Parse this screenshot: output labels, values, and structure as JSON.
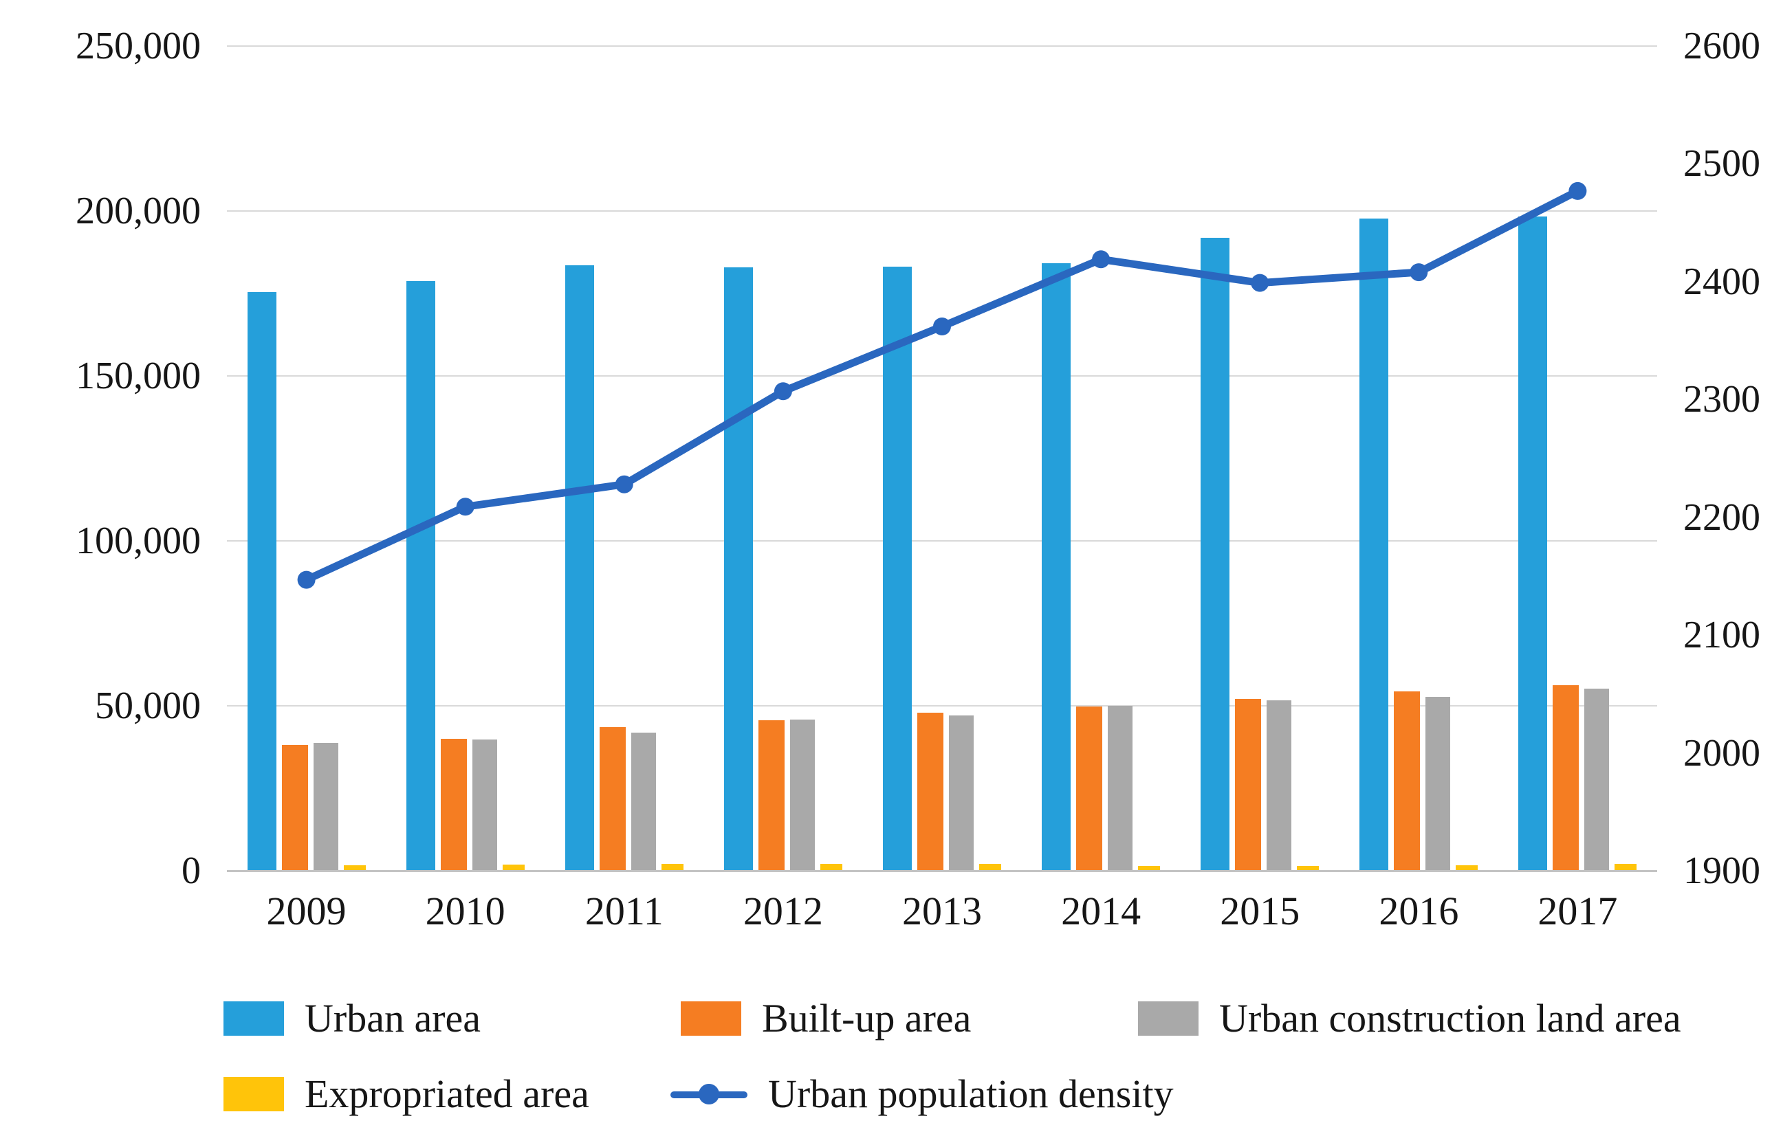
{
  "chart_data": {
    "type": "bar",
    "title": "",
    "categories": [
      "2009",
      "2010",
      "2011",
      "2012",
      "2013",
      "2014",
      "2015",
      "2016",
      "2017"
    ],
    "series": [
      {
        "name": "Urban area",
        "type": "bar",
        "axis": "left",
        "color": "#259fda",
        "values": [
          175500,
          178700,
          183600,
          183000,
          183200,
          184100,
          191800,
          197800,
          198300
        ]
      },
      {
        "name": "Built-up area",
        "type": "bar",
        "axis": "left",
        "color": "#f57d22",
        "values": [
          38100,
          40100,
          43600,
          45600,
          47900,
          49800,
          52100,
          54300,
          56200
        ]
      },
      {
        "name": "Urban construction land area",
        "type": "bar",
        "axis": "left",
        "color": "#a9a9a9",
        "values": [
          38700,
          39800,
          41800,
          45800,
          47100,
          50000,
          51600,
          52800,
          55200
        ]
      },
      {
        "name": "Expropriated area",
        "type": "bar",
        "axis": "left",
        "color": "#ffc40a",
        "values": [
          1700,
          1900,
          2000,
          2100,
          2000,
          1500,
          1500,
          1600,
          2100
        ]
      },
      {
        "name": "Urban population density",
        "type": "line",
        "axis": "right",
        "color": "#2a67bf",
        "values": [
          2147,
          2209,
          2228,
          2307,
          2362,
          2419,
          2399,
          2408,
          2477
        ]
      }
    ],
    "left_axis": {
      "min": 0,
      "max": 250000,
      "step": 50000,
      "tick_labels": [
        "250,000",
        "200,000",
        "150,000",
        "100,000",
        "50,000",
        "0"
      ]
    },
    "right_axis": {
      "min": 1900,
      "max": 2600,
      "step": 100,
      "tick_labels": [
        "2600",
        "2500",
        "2400",
        "2300",
        "2200",
        "2100",
        "2000",
        "1900"
      ]
    },
    "grid": true,
    "legend_position": "bottom"
  },
  "style": {
    "gridline_color": "#d9d9d9",
    "baseline_color": "#c3c3c3",
    "text_color": "#161616",
    "background": "#ffffff"
  }
}
